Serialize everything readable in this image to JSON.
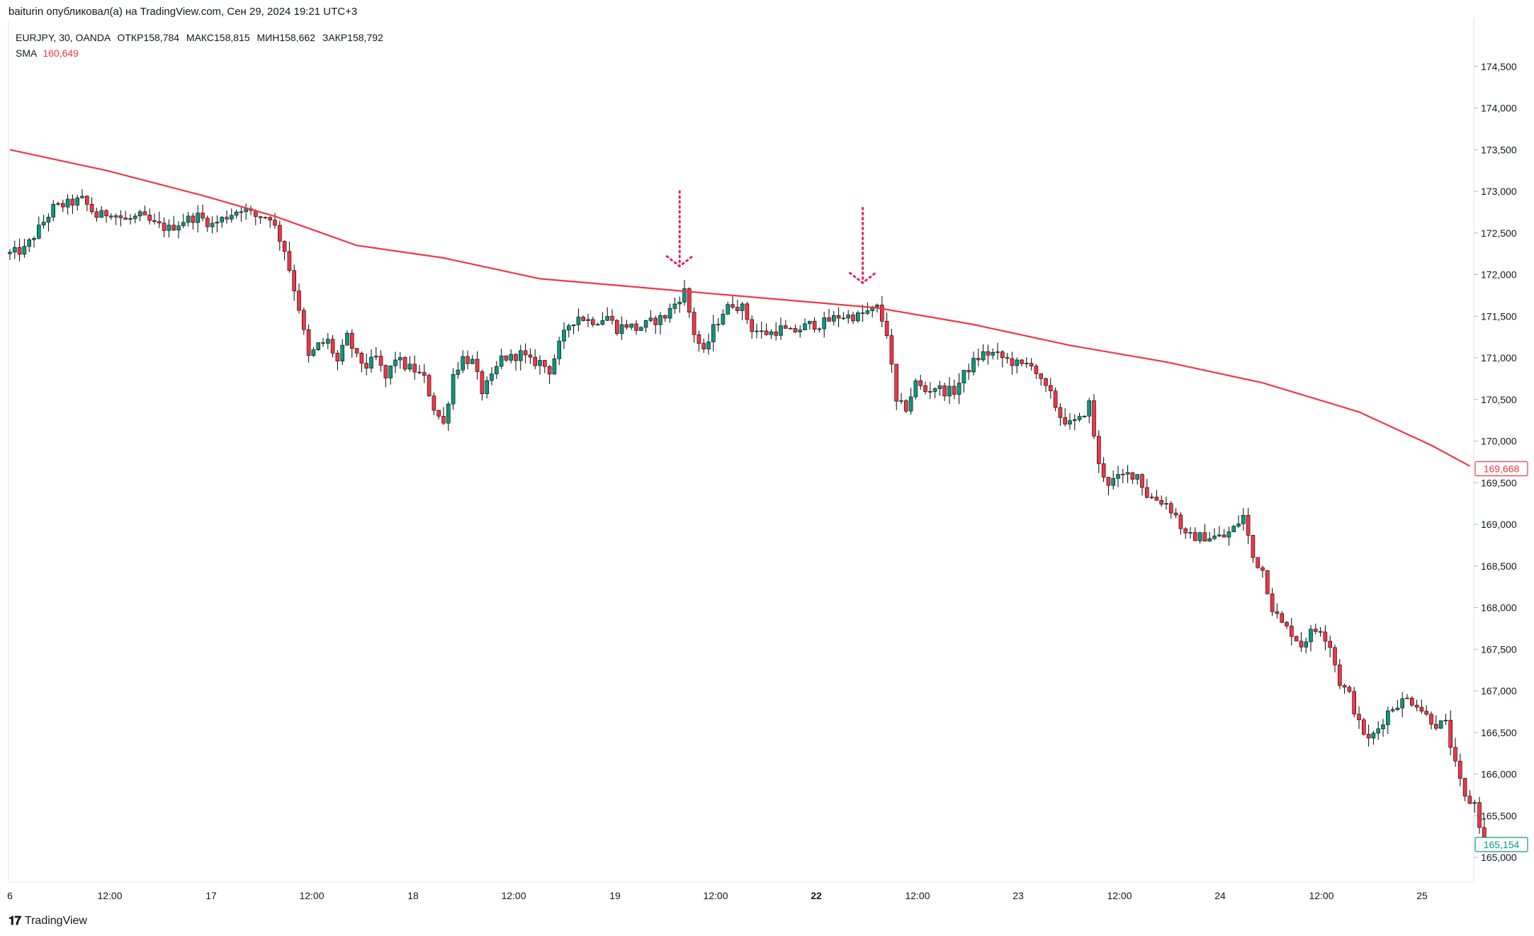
{
  "header": {
    "text": "baiturin опубликовал(а) на TradingView.com, Сен 29, 2024 19:21 UTC+3"
  },
  "legend": {
    "symbol": "EURJPY, 30, OANDA",
    "open_label": "ОТКР",
    "open": "158,784",
    "high_label": "МАКС",
    "high": "158,815",
    "low_label": "МИН",
    "low": "158,662",
    "close_label": "ЗАКР",
    "close": "158,792",
    "sma_label": "SMA",
    "sma_value": "160,649"
  },
  "footer": {
    "brand": "TradingView"
  },
  "colors": {
    "up": "#089981",
    "down": "#f23645",
    "sma": "#f23645",
    "wick": "#000000",
    "annotation": "#e91e63"
  },
  "chart_data": {
    "type": "candlestick",
    "title": "",
    "ylim": [
      164.4,
      174.6
    ],
    "y_ticks": [
      "165,000",
      "165,500",
      "166,000",
      "166,500",
      "167,000",
      "167,500",
      "168,000",
      "168,500",
      "169,000",
      "169,500",
      "170,000",
      "170,500",
      "171,000",
      "171,500",
      "172,000",
      "172,500",
      "173,000",
      "173,500",
      "174,000",
      "174,500"
    ],
    "x_ticks": [
      {
        "label": "6",
        "bold": false
      },
      {
        "label": "12:00",
        "bold": false
      },
      {
        "label": "17",
        "bold": false
      },
      {
        "label": "12:00",
        "bold": false
      },
      {
        "label": "18",
        "bold": false
      },
      {
        "label": "12:00",
        "bold": false
      },
      {
        "label": "19",
        "bold": false
      },
      {
        "label": "12:00",
        "bold": false
      },
      {
        "label": "22",
        "bold": true
      },
      {
        "label": "12:00",
        "bold": false
      },
      {
        "label": "23",
        "bold": false
      },
      {
        "label": "12:00",
        "bold": false
      },
      {
        "label": "24",
        "bold": false
      },
      {
        "label": "12:00",
        "bold": false
      },
      {
        "label": "25",
        "bold": false
      }
    ],
    "price_path": [
      [
        0,
        172.25
      ],
      [
        3,
        172.3
      ],
      [
        6,
        172.55
      ],
      [
        9,
        172.8
      ],
      [
        12,
        172.85
      ],
      [
        15,
        172.9
      ],
      [
        18,
        172.7
      ],
      [
        21,
        172.75
      ],
      [
        24,
        172.65
      ],
      [
        27,
        172.7
      ],
      [
        30,
        172.6
      ],
      [
        33,
        172.55
      ],
      [
        36,
        172.65
      ],
      [
        39,
        172.7
      ],
      [
        42,
        172.6
      ],
      [
        45,
        172.7
      ],
      [
        48,
        172.8
      ],
      [
        51,
        172.7
      ],
      [
        54,
        172.7
      ],
      [
        57,
        172.3
      ],
      [
        60,
        171.6
      ],
      [
        62,
        171.0
      ],
      [
        64,
        171.15
      ],
      [
        66,
        171.2
      ],
      [
        68,
        170.95
      ],
      [
        70,
        171.25
      ],
      [
        72,
        171.0
      ],
      [
        74,
        170.9
      ],
      [
        76,
        171.0
      ],
      [
        78,
        170.75
      ],
      [
        80,
        171.0
      ],
      [
        82,
        170.9
      ],
      [
        84,
        170.85
      ],
      [
        86,
        170.75
      ],
      [
        88,
        170.4
      ],
      [
        90,
        170.2
      ],
      [
        92,
        170.8
      ],
      [
        94,
        171.0
      ],
      [
        96,
        170.95
      ],
      [
        98,
        170.6
      ],
      [
        100,
        170.75
      ],
      [
        102,
        171.0
      ],
      [
        104,
        171.0
      ],
      [
        106,
        171.05
      ],
      [
        108,
        170.95
      ],
      [
        110,
        170.95
      ],
      [
        112,
        170.85
      ],
      [
        114,
        171.15
      ],
      [
        116,
        171.4
      ],
      [
        118,
        171.5
      ],
      [
        120,
        171.45
      ],
      [
        122,
        171.45
      ],
      [
        124,
        171.5
      ],
      [
        126,
        171.35
      ],
      [
        128,
        171.4
      ],
      [
        130,
        171.35
      ],
      [
        132,
        171.4
      ],
      [
        134,
        171.45
      ],
      [
        136,
        171.5
      ],
      [
        138,
        171.65
      ],
      [
        140,
        171.8
      ],
      [
        142,
        171.3
      ],
      [
        144,
        171.05
      ],
      [
        146,
        171.35
      ],
      [
        148,
        171.55
      ],
      [
        150,
        171.65
      ],
      [
        152,
        171.6
      ],
      [
        154,
        171.35
      ],
      [
        156,
        171.3
      ],
      [
        158,
        171.3
      ],
      [
        160,
        171.35
      ],
      [
        162,
        171.3
      ],
      [
        164,
        171.35
      ],
      [
        166,
        171.4
      ],
      [
        168,
        171.4
      ],
      [
        170,
        171.45
      ],
      [
        172,
        171.5
      ],
      [
        174,
        171.5
      ],
      [
        176,
        171.5
      ],
      [
        178,
        171.55
      ],
      [
        180,
        171.6
      ],
      [
        182,
        171.3
      ],
      [
        184,
        170.45
      ],
      [
        186,
        170.4
      ],
      [
        188,
        170.7
      ],
      [
        190,
        170.6
      ],
      [
        192,
        170.65
      ],
      [
        194,
        170.6
      ],
      [
        196,
        170.6
      ],
      [
        198,
        170.8
      ],
      [
        200,
        170.95
      ],
      [
        202,
        171.05
      ],
      [
        204,
        171.05
      ],
      [
        206,
        171.0
      ],
      [
        208,
        170.95
      ],
      [
        210,
        170.9
      ],
      [
        212,
        170.95
      ],
      [
        214,
        170.7
      ],
      [
        216,
        170.55
      ],
      [
        218,
        170.3
      ],
      [
        220,
        170.2
      ],
      [
        222,
        170.25
      ],
      [
        224,
        170.45
      ],
      [
        226,
        169.7
      ],
      [
        228,
        169.5
      ],
      [
        230,
        169.55
      ],
      [
        232,
        169.6
      ],
      [
        234,
        169.6
      ],
      [
        236,
        169.35
      ],
      [
        238,
        169.3
      ],
      [
        240,
        169.25
      ],
      [
        242,
        169.1
      ],
      [
        244,
        168.85
      ],
      [
        246,
        168.85
      ],
      [
        248,
        168.85
      ],
      [
        250,
        168.85
      ],
      [
        252,
        168.85
      ],
      [
        254,
        168.95
      ],
      [
        256,
        169.1
      ],
      [
        258,
        168.6
      ],
      [
        260,
        168.45
      ],
      [
        262,
        168.0
      ],
      [
        264,
        167.8
      ],
      [
        266,
        167.7
      ],
      [
        268,
        167.55
      ],
      [
        270,
        167.7
      ],
      [
        272,
        167.75
      ],
      [
        274,
        167.55
      ],
      [
        276,
        167.1
      ],
      [
        278,
        166.95
      ],
      [
        280,
        166.6
      ],
      [
        282,
        166.4
      ],
      [
        284,
        166.55
      ],
      [
        286,
        166.75
      ],
      [
        288,
        166.85
      ],
      [
        290,
        166.9
      ],
      [
        292,
        166.85
      ],
      [
        294,
        166.7
      ],
      [
        296,
        166.6
      ],
      [
        298,
        166.6
      ],
      [
        300,
        166.1
      ],
      [
        302,
        165.7
      ],
      [
        304,
        165.65
      ],
      [
        306,
        165.15
      ]
    ],
    "sma": [
      [
        0,
        173.5
      ],
      [
        20,
        173.25
      ],
      [
        40,
        172.95
      ],
      [
        55,
        172.7
      ],
      [
        72,
        172.35
      ],
      [
        90,
        172.2
      ],
      [
        110,
        171.95
      ],
      [
        130,
        171.85
      ],
      [
        150,
        171.75
      ],
      [
        170,
        171.65
      ],
      [
        180,
        171.6
      ],
      [
        200,
        171.4
      ],
      [
        220,
        171.15
      ],
      [
        240,
        170.95
      ],
      [
        260,
        170.7
      ],
      [
        280,
        170.35
      ],
      [
        295,
        169.95
      ],
      [
        303,
        169.7
      ]
    ],
    "last_price": {
      "value": 165.154,
      "label": "165,154"
    },
    "sma_last": {
      "value": 169.668,
      "label": "169,668"
    },
    "annotations": [
      {
        "type": "dotted-arrow-down",
        "bar": 139,
        "from": 173.0,
        "to": 172.1
      },
      {
        "type": "dotted-arrow-down",
        "bar": 177,
        "from": 172.8,
        "to": 171.9
      }
    ]
  }
}
